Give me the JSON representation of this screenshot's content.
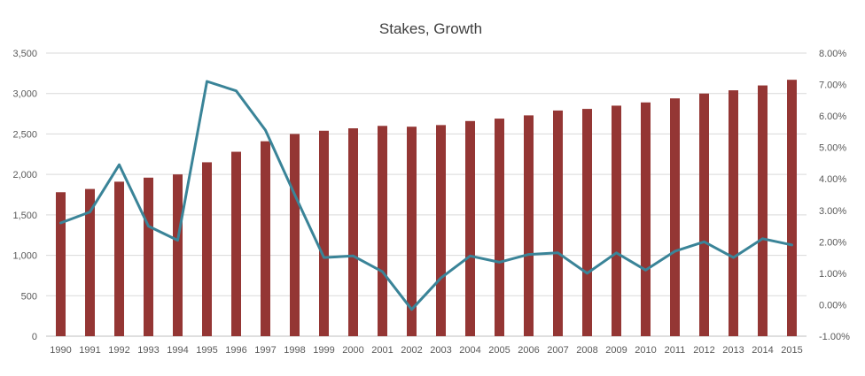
{
  "chart_data": {
    "type": "bar",
    "title": "Stakes, Growth",
    "xlabel": "",
    "ylabel": "",
    "categories": [
      "1990",
      "1991",
      "1992",
      "1993",
      "1994",
      "1995",
      "1996",
      "1997",
      "1998",
      "1999",
      "2000",
      "2001",
      "2002",
      "2003",
      "2004",
      "2005",
      "2006",
      "2007",
      "2008",
      "2009",
      "2010",
      "2011",
      "2012",
      "2013",
      "2014",
      "2015"
    ],
    "series": [
      {
        "type": "bar",
        "axis": "left",
        "color": "#943634",
        "values": [
          1780,
          1820,
          1910,
          1960,
          2000,
          2150,
          2280,
          2410,
          2500,
          2540,
          2570,
          2600,
          2590,
          2610,
          2660,
          2690,
          2730,
          2790,
          2810,
          2850,
          2890,
          2940,
          3000,
          3040,
          3100,
          3170
        ]
      },
      {
        "type": "line",
        "axis": "right",
        "color": "#3a8498",
        "values": [
          2.6,
          2.95,
          4.45,
          2.5,
          2.05,
          7.1,
          6.8,
          5.55,
          3.5,
          1.5,
          1.55,
          1.05,
          -0.15,
          0.85,
          1.55,
          1.35,
          1.6,
          1.65,
          1.0,
          1.65,
          1.1,
          1.7,
          2.0,
          1.5,
          2.1,
          1.9
        ]
      }
    ],
    "y_left": {
      "min": 0,
      "max": 3500,
      "step": 500,
      "tick_labels": [
        "0",
        "500",
        "1,000",
        "1,500",
        "2,000",
        "2,500",
        "3,000",
        "3,500"
      ]
    },
    "y_right": {
      "min": -1,
      "max": 8,
      "step": 1,
      "tick_labels": [
        "-1.00%",
        "0.00%",
        "1.00%",
        "2.00%",
        "3.00%",
        "4.00%",
        "5.00%",
        "6.00%",
        "7.00%",
        "8.00%"
      ]
    },
    "grid": true,
    "legend": "none"
  }
}
